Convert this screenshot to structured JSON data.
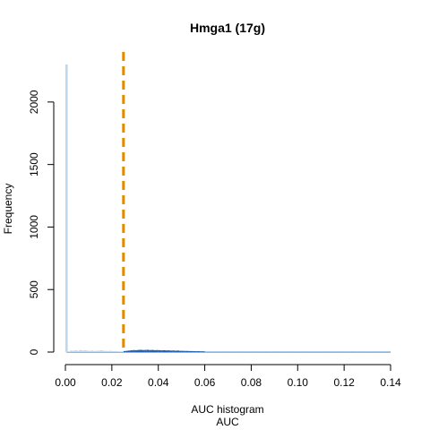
{
  "chart_data": {
    "type": "bar",
    "title": "Hmga1 (17g)",
    "xlabel_line1": "AUC histogram",
    "xlabel_line2": "AUC",
    "ylabel": "Frequency",
    "xlim": [
      0.0,
      0.14
    ],
    "ylim": [
      0,
      2300
    ],
    "x_ticks": [
      0.0,
      0.02,
      0.04,
      0.06,
      0.08,
      0.1,
      0.12,
      0.14
    ],
    "x_tick_labels": [
      "0.00",
      "0.02",
      "0.04",
      "0.06",
      "0.08",
      "0.10",
      "0.12",
      "0.14"
    ],
    "y_ticks": [
      0,
      500,
      1000,
      1500,
      2000
    ],
    "y_tick_labels": [
      "0",
      "500",
      "1000",
      "1500",
      "2000"
    ],
    "threshold": {
      "x": 0.025,
      "color": "#e08a00"
    },
    "colors": {
      "below_threshold": "#bcd8f0",
      "above_threshold_high": "#1e5fae",
      "above_threshold_low": "#8fb8e3"
    },
    "series": [
      {
        "values": [
          [
            0.0005,
            2300
          ],
          [
            0.0015,
            6
          ],
          [
            0.0025,
            12
          ],
          [
            0.0035,
            10
          ],
          [
            0.0045,
            14
          ],
          [
            0.0055,
            10
          ],
          [
            0.0065,
            16
          ],
          [
            0.0075,
            12
          ],
          [
            0.0085,
            14
          ],
          [
            0.0095,
            11
          ],
          [
            0.0105,
            9
          ],
          [
            0.0115,
            12
          ],
          [
            0.0125,
            8
          ],
          [
            0.0135,
            10
          ],
          [
            0.0145,
            11
          ],
          [
            0.0155,
            14
          ],
          [
            0.0165,
            10
          ],
          [
            0.0175,
            9
          ],
          [
            0.0185,
            8
          ],
          [
            0.0195,
            10
          ],
          [
            0.0205,
            7
          ],
          [
            0.0215,
            8
          ],
          [
            0.0225,
            6
          ],
          [
            0.0235,
            5
          ],
          [
            0.0245,
            6
          ],
          [
            0.0255,
            8
          ],
          [
            0.0265,
            10
          ],
          [
            0.0275,
            12
          ],
          [
            0.0285,
            14
          ],
          [
            0.0295,
            16
          ],
          [
            0.0305,
            15
          ],
          [
            0.0315,
            17
          ],
          [
            0.0325,
            18
          ],
          [
            0.0335,
            16
          ],
          [
            0.0345,
            17
          ],
          [
            0.0355,
            18
          ],
          [
            0.0365,
            16
          ],
          [
            0.0375,
            17
          ],
          [
            0.0385,
            15
          ],
          [
            0.0395,
            16
          ],
          [
            0.0405,
            15
          ],
          [
            0.0415,
            14
          ],
          [
            0.0425,
            15
          ],
          [
            0.0435,
            13
          ],
          [
            0.0445,
            14
          ],
          [
            0.0455,
            12
          ],
          [
            0.0465,
            13
          ],
          [
            0.0475,
            11
          ],
          [
            0.0485,
            12
          ],
          [
            0.0495,
            10
          ],
          [
            0.0505,
            10
          ],
          [
            0.0515,
            9
          ],
          [
            0.0525,
            9
          ],
          [
            0.0535,
            8
          ],
          [
            0.0545,
            8
          ],
          [
            0.0555,
            7
          ],
          [
            0.0565,
            7
          ],
          [
            0.0575,
            7
          ],
          [
            0.0585,
            6
          ],
          [
            0.0595,
            6
          ],
          [
            0.0605,
            6
          ],
          [
            0.0615,
            5
          ],
          [
            0.0625,
            5
          ],
          [
            0.0635,
            5
          ],
          [
            0.0645,
            5
          ],
          [
            0.0655,
            4
          ],
          [
            0.0665,
            4
          ],
          [
            0.0675,
            4
          ],
          [
            0.0685,
            4
          ],
          [
            0.0695,
            4
          ],
          [
            0.0705,
            3
          ],
          [
            0.0715,
            3
          ],
          [
            0.0725,
            3
          ],
          [
            0.0735,
            3
          ],
          [
            0.0745,
            3
          ],
          [
            0.0755,
            3
          ],
          [
            0.0765,
            3
          ],
          [
            0.0775,
            3
          ],
          [
            0.0785,
            2
          ],
          [
            0.0795,
            2
          ],
          [
            0.0805,
            2
          ],
          [
            0.0815,
            2
          ],
          [
            0.0825,
            2
          ],
          [
            0.0835,
            2
          ],
          [
            0.0845,
            2
          ],
          [
            0.0855,
            2
          ],
          [
            0.0865,
            2
          ],
          [
            0.0875,
            2
          ],
          [
            0.0885,
            2
          ],
          [
            0.0895,
            2
          ],
          [
            0.0905,
            1
          ],
          [
            0.0915,
            1
          ],
          [
            0.0925,
            1
          ],
          [
            0.0935,
            1
          ],
          [
            0.0945,
            1
          ],
          [
            0.0955,
            1
          ],
          [
            0.0965,
            1
          ],
          [
            0.0975,
            1
          ],
          [
            0.0985,
            1
          ],
          [
            0.0995,
            1
          ],
          [
            0.1005,
            1
          ],
          [
            0.1015,
            1
          ],
          [
            0.1025,
            1
          ],
          [
            0.1035,
            1
          ],
          [
            0.1045,
            1
          ],
          [
            0.1055,
            1
          ],
          [
            0.1065,
            1
          ],
          [
            0.1075,
            1
          ],
          [
            0.1085,
            1
          ],
          [
            0.1095,
            1
          ],
          [
            0.1105,
            1
          ],
          [
            0.1115,
            1
          ],
          [
            0.1125,
            1
          ],
          [
            0.1135,
            1
          ],
          [
            0.1145,
            1
          ],
          [
            0.1155,
            1
          ],
          [
            0.1165,
            1
          ],
          [
            0.1175,
            1
          ],
          [
            0.1185,
            1
          ],
          [
            0.1195,
            1
          ],
          [
            0.1205,
            1
          ],
          [
            0.1215,
            1
          ],
          [
            0.1225,
            1
          ],
          [
            0.1235,
            1
          ],
          [
            0.1245,
            1
          ],
          [
            0.1255,
            1
          ],
          [
            0.1265,
            1
          ],
          [
            0.1275,
            1
          ],
          [
            0.1285,
            1
          ],
          [
            0.1295,
            1
          ],
          [
            0.1305,
            1
          ],
          [
            0.1315,
            1
          ],
          [
            0.1325,
            1
          ],
          [
            0.1335,
            1
          ],
          [
            0.1345,
            1
          ],
          [
            0.1355,
            1
          ],
          [
            0.1365,
            1
          ],
          [
            0.1375,
            1
          ],
          [
            0.1385,
            1
          ],
          [
            0.1395,
            1
          ]
        ]
      }
    ]
  }
}
